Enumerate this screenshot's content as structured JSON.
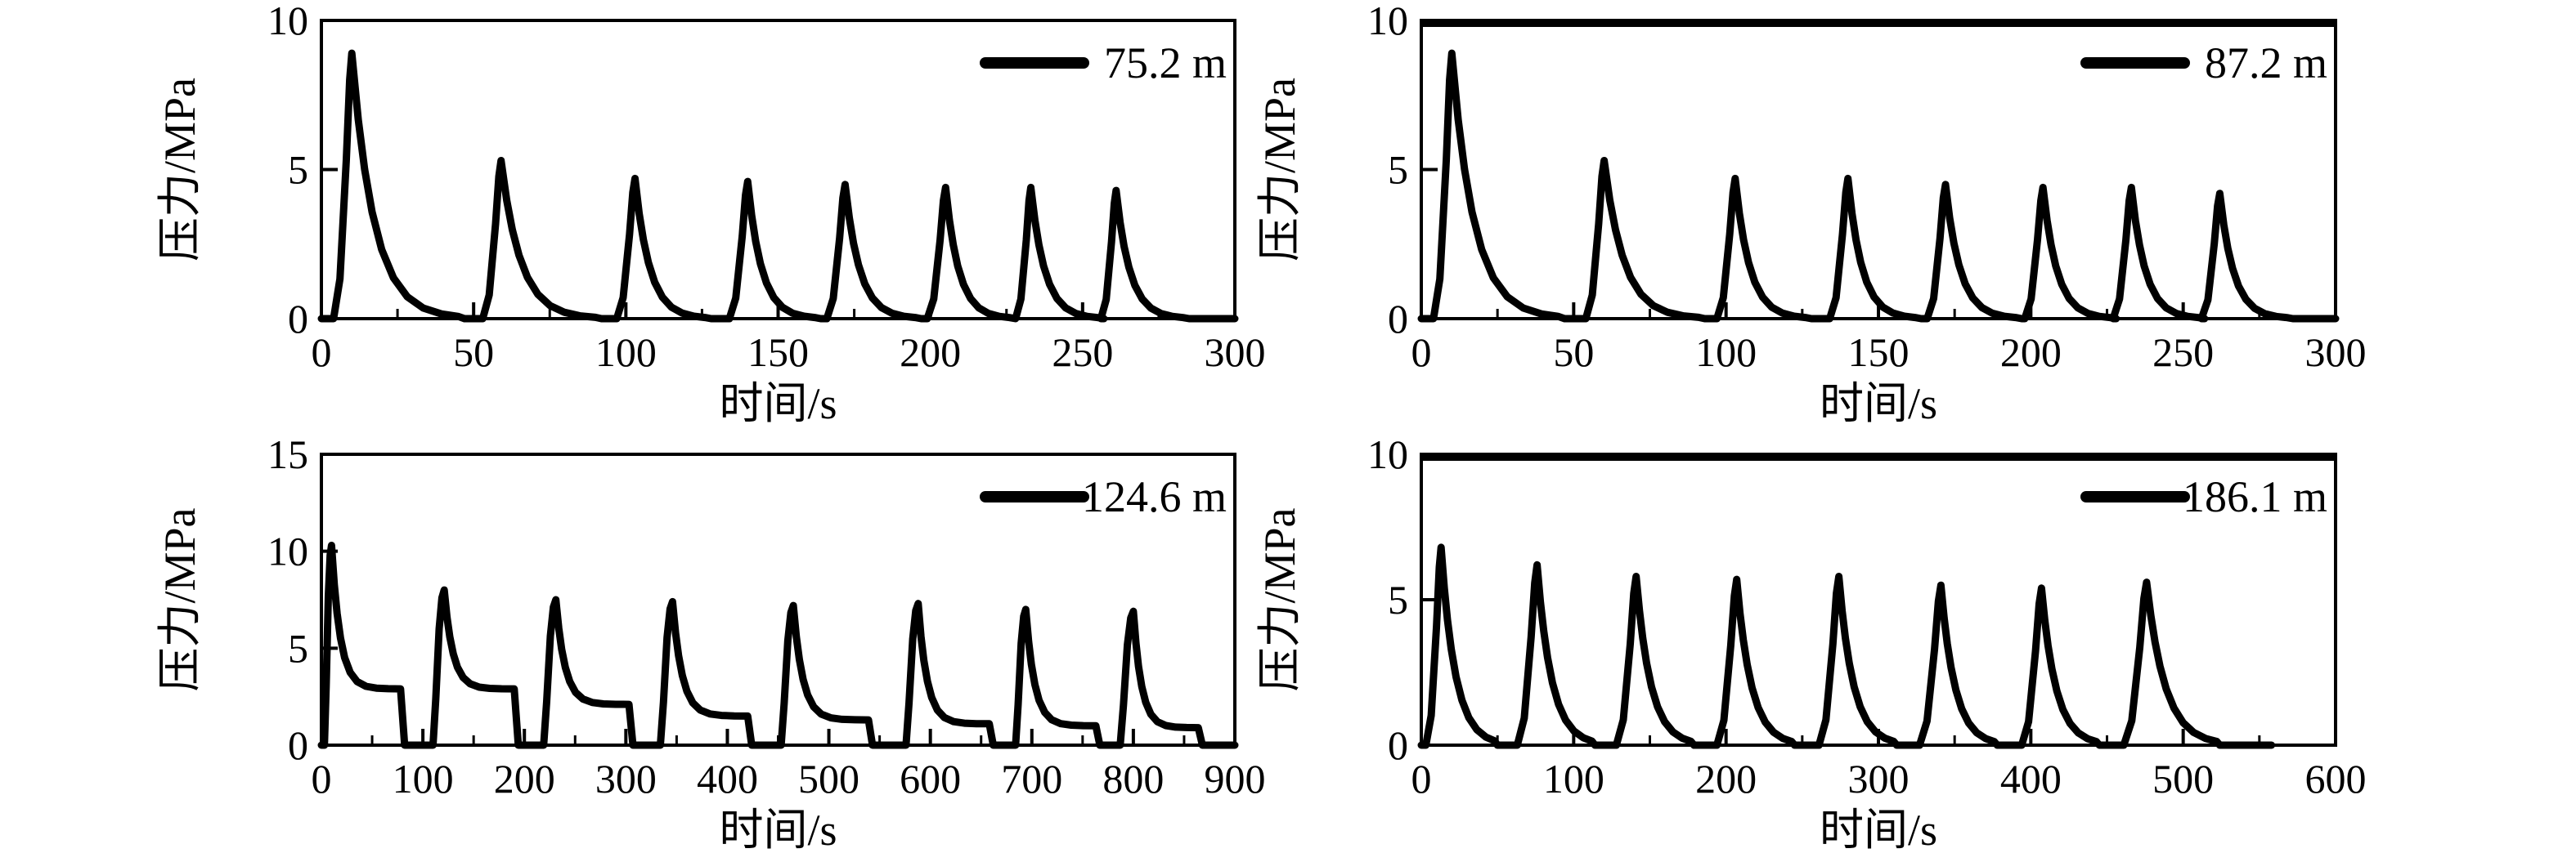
{
  "figure": {
    "background": "#ffffff",
    "line_color": "#000000",
    "ylabel": "压力/MPa",
    "xlabel": "时间/s"
  },
  "chart_data": [
    {
      "type": "line",
      "title": "",
      "legend": {
        "label": "75.2 m",
        "position": "top-right"
      },
      "xlabel": "时间/s",
      "ylabel": "压力/MPa",
      "xlim": [
        0,
        300
      ],
      "ylim": [
        0,
        10
      ],
      "xticks": [
        0,
        50,
        100,
        150,
        200,
        250,
        300
      ],
      "yticks": [
        0,
        5,
        10
      ],
      "x_minor_step": 25,
      "grid": false,
      "series": [
        {
          "name": "75.2 m",
          "trace_end": 300,
          "decay_k": 4.8,
          "pulses": [
            {
              "t_start": 4,
              "t_peak": 10,
              "p_peak": 8.9,
              "t_end": 45
            },
            {
              "t_start": 53,
              "t_peak": 59,
              "p_peak": 5.3,
              "t_end": 90
            },
            {
              "t_start": 97,
              "t_peak": 103,
              "p_peak": 4.7,
              "t_end": 126
            },
            {
              "t_start": 134,
              "t_peak": 140,
              "p_peak": 4.6,
              "t_end": 162
            },
            {
              "t_start": 166,
              "t_peak": 172,
              "p_peak": 4.5,
              "t_end": 195
            },
            {
              "t_start": 199,
              "t_peak": 205,
              "p_peak": 4.4,
              "t_end": 226
            },
            {
              "t_start": 228,
              "t_peak": 233,
              "p_peak": 4.4,
              "t_end": 255
            },
            {
              "t_start": 256,
              "t_peak": 261,
              "p_peak": 4.3,
              "t_end": 283
            }
          ]
        }
      ]
    },
    {
      "type": "line",
      "title": "",
      "legend": {
        "label": "87.2 m",
        "position": "top-right"
      },
      "xlabel": "时间/s",
      "ylabel": "压力/MPa",
      "xlim": [
        0,
        300
      ],
      "ylim": [
        0,
        10
      ],
      "xticks": [
        0,
        50,
        100,
        150,
        200,
        250,
        300
      ],
      "yticks": [
        0,
        5,
        10
      ],
      "x_minor_step": 25,
      "grid": false,
      "series": [
        {
          "name": "87.2 m",
          "trace_end": 300,
          "decay_k": 4.8,
          "pulses": [
            {
              "t_start": 4,
              "t_peak": 10,
              "p_peak": 8.9,
              "t_end": 45
            },
            {
              "t_start": 54,
              "t_peak": 60,
              "p_peak": 5.3,
              "t_end": 91
            },
            {
              "t_start": 97,
              "t_peak": 103,
              "p_peak": 4.7,
              "t_end": 126
            },
            {
              "t_start": 134,
              "t_peak": 140,
              "p_peak": 4.7,
              "t_end": 162
            },
            {
              "t_start": 166,
              "t_peak": 172,
              "p_peak": 4.5,
              "t_end": 195
            },
            {
              "t_start": 198,
              "t_peak": 204,
              "p_peak": 4.4,
              "t_end": 226
            },
            {
              "t_start": 227,
              "t_peak": 233,
              "p_peak": 4.4,
              "t_end": 255
            },
            {
              "t_start": 256,
              "t_peak": 262,
              "p_peak": 4.2,
              "t_end": 284
            }
          ]
        }
      ]
    },
    {
      "type": "line",
      "title": "",
      "legend": {
        "label": "124.6 m",
        "position": "top-right"
      },
      "xlabel": "时间/s",
      "ylabel": "压力/MPa",
      "xlim": [
        0,
        900
      ],
      "ylim": [
        0,
        15
      ],
      "xticks": [
        0,
        100,
        200,
        300,
        400,
        500,
        600,
        700,
        800,
        900
      ],
      "yticks": [
        0,
        5,
        10,
        15
      ],
      "x_minor_step": 50,
      "grid": false,
      "series": [
        {
          "name": "124.6 m",
          "trace_end": 900,
          "decay_k": 8,
          "pulses": [
            {
              "t_start": 3,
              "t_peak": 10,
              "p_peak": 10.3,
              "t_end": 78,
              "p_tail": 2.9
            },
            {
              "t_start": 110,
              "t_peak": 121,
              "p_peak": 8.0,
              "t_end": 190,
              "p_tail": 2.9
            },
            {
              "t_start": 219,
              "t_peak": 231,
              "p_peak": 7.5,
              "t_end": 303,
              "p_tail": 2.1
            },
            {
              "t_start": 334,
              "t_peak": 346,
              "p_peak": 7.4,
              "t_end": 420,
              "p_tail": 1.5
            },
            {
              "t_start": 453,
              "t_peak": 465,
              "p_peak": 7.2,
              "t_end": 539,
              "p_tail": 1.3
            },
            {
              "t_start": 576,
              "t_peak": 588,
              "p_peak": 7.3,
              "t_end": 658,
              "p_tail": 1.1
            },
            {
              "t_start": 684,
              "t_peak": 694,
              "p_peak": 7.0,
              "t_end": 763,
              "p_tail": 1.0
            },
            {
              "t_start": 787,
              "t_peak": 800,
              "p_peak": 6.9,
              "t_end": 864,
              "p_tail": 0.9
            }
          ]
        }
      ]
    },
    {
      "type": "line",
      "title": "",
      "legend": {
        "label": "186.1 m",
        "position": "top-right"
      },
      "xlabel": "时间/s",
      "ylabel": "压力/MPa",
      "xlim": [
        0,
        600
      ],
      "ylim": [
        0,
        10
      ],
      "xticks": [
        0,
        100,
        200,
        300,
        400,
        500,
        600
      ],
      "yticks": [
        0,
        5,
        10
      ],
      "x_minor_step": 50,
      "grid": false,
      "series": [
        {
          "name": "186.1 m",
          "trace_end": 558,
          "decay_k": 3.8,
          "pulses": [
            {
              "t_start": 3,
              "t_peak": 13,
              "p_peak": 6.8,
              "t_end": 48
            },
            {
              "t_start": 63,
              "t_peak": 76,
              "p_peak": 6.2,
              "t_end": 112
            },
            {
              "t_start": 128,
              "t_peak": 141,
              "p_peak": 5.8,
              "t_end": 177
            },
            {
              "t_start": 194,
              "t_peak": 207,
              "p_peak": 5.7,
              "t_end": 243
            },
            {
              "t_start": 261,
              "t_peak": 274,
              "p_peak": 5.8,
              "t_end": 310
            },
            {
              "t_start": 327,
              "t_peak": 341,
              "p_peak": 5.5,
              "t_end": 376
            },
            {
              "t_start": 394,
              "t_peak": 407,
              "p_peak": 5.4,
              "t_end": 443
            },
            {
              "t_start": 461,
              "t_peak": 476,
              "p_peak": 5.6,
              "t_end": 522
            }
          ]
        }
      ]
    }
  ]
}
